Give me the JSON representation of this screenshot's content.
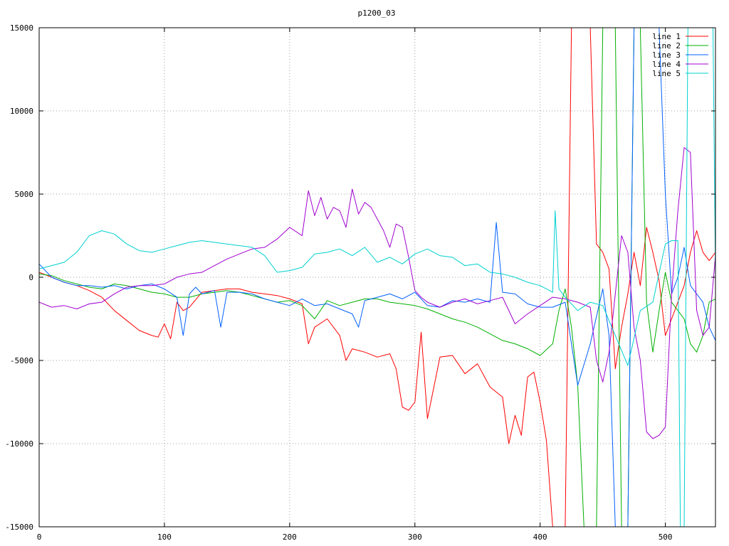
{
  "chart_data": {
    "type": "line",
    "title": "p1200_03",
    "xlabel": "",
    "ylabel": "",
    "xlim": [
      0,
      540
    ],
    "ylim": [
      -15000,
      15000
    ],
    "xticks": [
      0,
      100,
      200,
      300,
      400,
      500
    ],
    "yticks": [
      -15000,
      -10000,
      -5000,
      0,
      5000,
      10000,
      15000
    ],
    "grid": true,
    "legend_position": "top-right",
    "series": [
      {
        "name": "line 1",
        "color": "#ff0000",
        "x": [
          0,
          10,
          20,
          30,
          40,
          50,
          60,
          70,
          80,
          90,
          95,
          100,
          105,
          110,
          115,
          120,
          130,
          140,
          150,
          160,
          170,
          180,
          190,
          200,
          210,
          215,
          220,
          230,
          240,
          245,
          250,
          260,
          270,
          280,
          285,
          290,
          295,
          300,
          305,
          310,
          320,
          330,
          340,
          350,
          360,
          370,
          375,
          380,
          385,
          390,
          395,
          400,
          405,
          410,
          415,
          420,
          425,
          430,
          435,
          440,
          445,
          450,
          455,
          460,
          465,
          470,
          475,
          480,
          485,
          490,
          495,
          500,
          505,
          510,
          515,
          520,
          525,
          530,
          535,
          540
        ],
        "y": [
          300,
          0,
          -300,
          -500,
          -800,
          -1200,
          -2000,
          -2600,
          -3200,
          -3500,
          -3600,
          -2800,
          -3700,
          -1500,
          -2000,
          -1800,
          -900,
          -800,
          -700,
          -700,
          -900,
          -1000,
          -1100,
          -1300,
          -1600,
          -4000,
          -3000,
          -2500,
          -3500,
          -5000,
          -4300,
          -4500,
          -4800,
          -4600,
          -5500,
          -7800,
          -8000,
          -7500,
          -3300,
          -8500,
          -4800,
          -4700,
          -5800,
          -5200,
          -6600,
          -7200,
          -10000,
          -8300,
          -9500,
          -6000,
          -5700,
          -7500,
          -9800,
          -15000,
          -15000,
          -15000,
          15000,
          15000,
          15000,
          15000,
          2000,
          1500,
          500,
          -5500,
          -3000,
          -1000,
          1500,
          -500,
          3000,
          1500,
          -200,
          -3500,
          -2500,
          -1500,
          -500,
          1500,
          2800,
          1500,
          1000,
          1500
        ],
        "line_width": 1
      },
      {
        "name": "line 2",
        "color": "#00b000",
        "x": [
          0,
          10,
          20,
          30,
          40,
          50,
          60,
          70,
          80,
          90,
          100,
          110,
          120,
          130,
          140,
          150,
          160,
          170,
          180,
          190,
          200,
          210,
          220,
          230,
          240,
          250,
          260,
          270,
          280,
          290,
          300,
          310,
          320,
          330,
          340,
          350,
          360,
          370,
          380,
          390,
          400,
          410,
          415,
          420,
          425,
          430,
          435,
          440,
          445,
          450,
          455,
          460,
          465,
          470,
          475,
          480,
          485,
          490,
          495,
          500,
          505,
          510,
          515,
          520,
          525,
          530,
          535,
          540
        ],
        "y": [
          200,
          100,
          -200,
          -400,
          -600,
          -700,
          -400,
          -500,
          -700,
          -900,
          -1000,
          -1200,
          -1200,
          -1000,
          -900,
          -800,
          -900,
          -1100,
          -1300,
          -1500,
          -1400,
          -1700,
          -2500,
          -1400,
          -1700,
          -1500,
          -1300,
          -1300,
          -1500,
          -1600,
          -1700,
          -1900,
          -2200,
          -2500,
          -2700,
          -3000,
          -3400,
          -3800,
          -4000,
          -4300,
          -4700,
          -4000,
          -2000,
          -700,
          -3000,
          -6500,
          -15000,
          -15000,
          -15000,
          15000,
          15000,
          15000,
          -15000,
          -15000,
          15000,
          15000,
          -1500,
          -4500,
          -2000,
          300,
          -1500,
          -2000,
          -2500,
          -4000,
          -4500,
          -3500,
          -1500,
          -1300
        ],
        "line_width": 1
      },
      {
        "name": "line 3",
        "color": "#0060ff",
        "x": [
          0,
          10,
          20,
          30,
          40,
          50,
          60,
          70,
          80,
          90,
          100,
          110,
          115,
          120,
          125,
          130,
          140,
          145,
          150,
          160,
          170,
          180,
          190,
          200,
          210,
          220,
          230,
          240,
          250,
          255,
          260,
          270,
          280,
          290,
          300,
          310,
          320,
          330,
          340,
          350,
          360,
          365,
          370,
          380,
          390,
          400,
          410,
          420,
          430,
          440,
          450,
          455,
          460,
          465,
          470,
          475,
          480,
          485,
          490,
          495,
          500,
          505,
          510,
          515,
          520,
          525,
          530,
          535,
          540
        ],
        "y": [
          800,
          0,
          -300,
          -500,
          -500,
          -600,
          -500,
          -700,
          -500,
          -400,
          -700,
          -1200,
          -3500,
          -1000,
          -600,
          -1000,
          -800,
          -3000,
          -900,
          -900,
          -1000,
          -1300,
          -1500,
          -1700,
          -1300,
          -1700,
          -1600,
          -1900,
          -2200,
          -3000,
          -1400,
          -1200,
          -1000,
          -1300,
          -900,
          -1700,
          -1800,
          -1400,
          -1500,
          -1300,
          -1500,
          3300,
          -900,
          -1000,
          -1600,
          -1800,
          -1800,
          -1500,
          -6500,
          -4000,
          -700,
          -3500,
          -15000,
          -15000,
          -15000,
          15000,
          15000,
          15000,
          15000,
          15000,
          5000,
          -1000,
          0,
          1800,
          -500,
          -1000,
          -1500,
          -3000,
          -3800
        ],
        "line_width": 1
      },
      {
        "name": "line 4",
        "color": "#a000d0",
        "x": [
          0,
          10,
          20,
          30,
          40,
          50,
          60,
          70,
          80,
          90,
          100,
          110,
          120,
          130,
          140,
          150,
          160,
          170,
          180,
          190,
          200,
          210,
          215,
          220,
          225,
          230,
          235,
          240,
          245,
          250,
          255,
          260,
          265,
          270,
          275,
          280,
          285,
          290,
          295,
          300,
          305,
          310,
          320,
          330,
          340,
          350,
          360,
          370,
          380,
          390,
          400,
          410,
          420,
          430,
          440,
          445,
          450,
          455,
          460,
          465,
          470,
          475,
          480,
          485,
          490,
          495,
          500,
          505,
          510,
          515,
          520,
          525,
          530,
          535,
          540
        ],
        "y": [
          -1500,
          -1800,
          -1700,
          -1900,
          -1600,
          -1500,
          -1000,
          -600,
          -500,
          -500,
          -400,
          0,
          200,
          300,
          700,
          1100,
          1400,
          1700,
          1800,
          2300,
          3000,
          2500,
          5200,
          3700,
          4800,
          3500,
          4200,
          4000,
          3000,
          5300,
          3800,
          4500,
          4200,
          3500,
          2800,
          1800,
          3200,
          3000,
          1200,
          -800,
          -1200,
          -1500,
          -1800,
          -1500,
          -1300,
          -1600,
          -1400,
          -1200,
          -2800,
          -2200,
          -1700,
          -1200,
          -1300,
          -1500,
          -1800,
          -5000,
          -6300,
          -4500,
          -1000,
          2500,
          1500,
          -3000,
          -5000,
          -9300,
          -9700,
          -9500,
          -9000,
          -1000,
          4000,
          7800,
          7500,
          -2000,
          -3500,
          -3000,
          1300
        ],
        "line_width": 1
      },
      {
        "name": "line 5",
        "color": "#00d0d0",
        "x": [
          0,
          10,
          20,
          30,
          40,
          50,
          60,
          70,
          80,
          90,
          100,
          110,
          120,
          130,
          140,
          150,
          160,
          170,
          180,
          190,
          200,
          210,
          220,
          230,
          240,
          250,
          260,
          270,
          280,
          290,
          300,
          310,
          320,
          330,
          340,
          350,
          360,
          370,
          380,
          390,
          400,
          410,
          412,
          415,
          420,
          430,
          440,
          450,
          460,
          470,
          480,
          490,
          500,
          505,
          510,
          512,
          515,
          518,
          520,
          525,
          530,
          535,
          538,
          540
        ],
        "y": [
          500,
          700,
          900,
          1500,
          2500,
          2800,
          2600,
          2000,
          1600,
          1500,
          1700,
          1900,
          2100,
          2200,
          2100,
          2000,
          1900,
          1800,
          1300,
          300,
          400,
          600,
          1400,
          1500,
          1700,
          1300,
          1800,
          900,
          1200,
          800,
          1400,
          1700,
          1300,
          1200,
          700,
          800,
          300,
          200,
          0,
          -300,
          -500,
          -900,
          4000,
          -700,
          -1200,
          -2000,
          -1500,
          -1700,
          -3500,
          -5300,
          -2000,
          -1500,
          2000,
          2200,
          2200,
          -15000,
          -15000,
          15000,
          15000,
          15000,
          15000,
          15000,
          15000,
          200
        ],
        "line_width": 1
      }
    ]
  }
}
